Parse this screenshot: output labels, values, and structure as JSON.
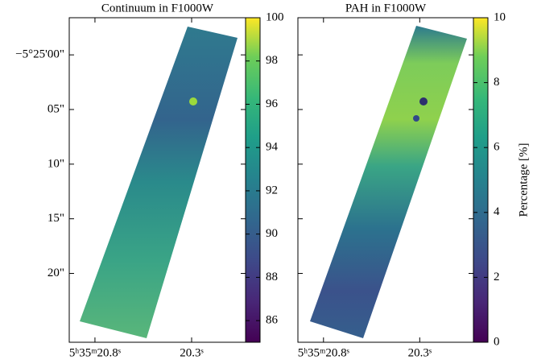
{
  "chart_data": [
    {
      "type": "image",
      "title": "Continuum in F1000W",
      "colormap": "viridis",
      "xlim": [
        20120.933,
        20120.021
      ],
      "xticks": [
        {
          "value": 20120.8,
          "label": "5ʰ35ᵐ20.8ˢ"
        },
        {
          "value": 20120.3,
          "label": "20.3ˢ"
        }
      ],
      "ylim": [
        -19526.3,
        -19496.6
      ],
      "yticks": [
        {
          "value": -19500,
          "label": "−5°25'00\""
        },
        {
          "value": -19505,
          "label": "05\""
        },
        {
          "value": -19510,
          "label": "10\""
        },
        {
          "value": -19515,
          "label": "15\""
        },
        {
          "value": -19520,
          "label": "20\""
        }
      ],
      "clim": [
        85,
        100
      ],
      "cticks": [
        86,
        88,
        90,
        92,
        94,
        96,
        98,
        100
      ]
    },
    {
      "type": "image",
      "title": "PAH in F1000W",
      "colormap": "viridis",
      "xlim": [
        20120.933,
        20120.021
      ],
      "xticks": [
        {
          "value": 20120.8,
          "label": "5ʰ35ᵐ20.8ˢ"
        },
        {
          "value": 20120.3,
          "label": "20.3ˢ"
        }
      ],
      "ylim": [
        -19526.3,
        -19496.6
      ],
      "yticks": [
        -19500,
        -19505,
        -19510,
        -19515,
        -19520
      ],
      "clim": [
        0,
        10
      ],
      "cticks": [
        0,
        2,
        4,
        6,
        8,
        10
      ],
      "colorbar_label": "Percentage [%]"
    }
  ]
}
